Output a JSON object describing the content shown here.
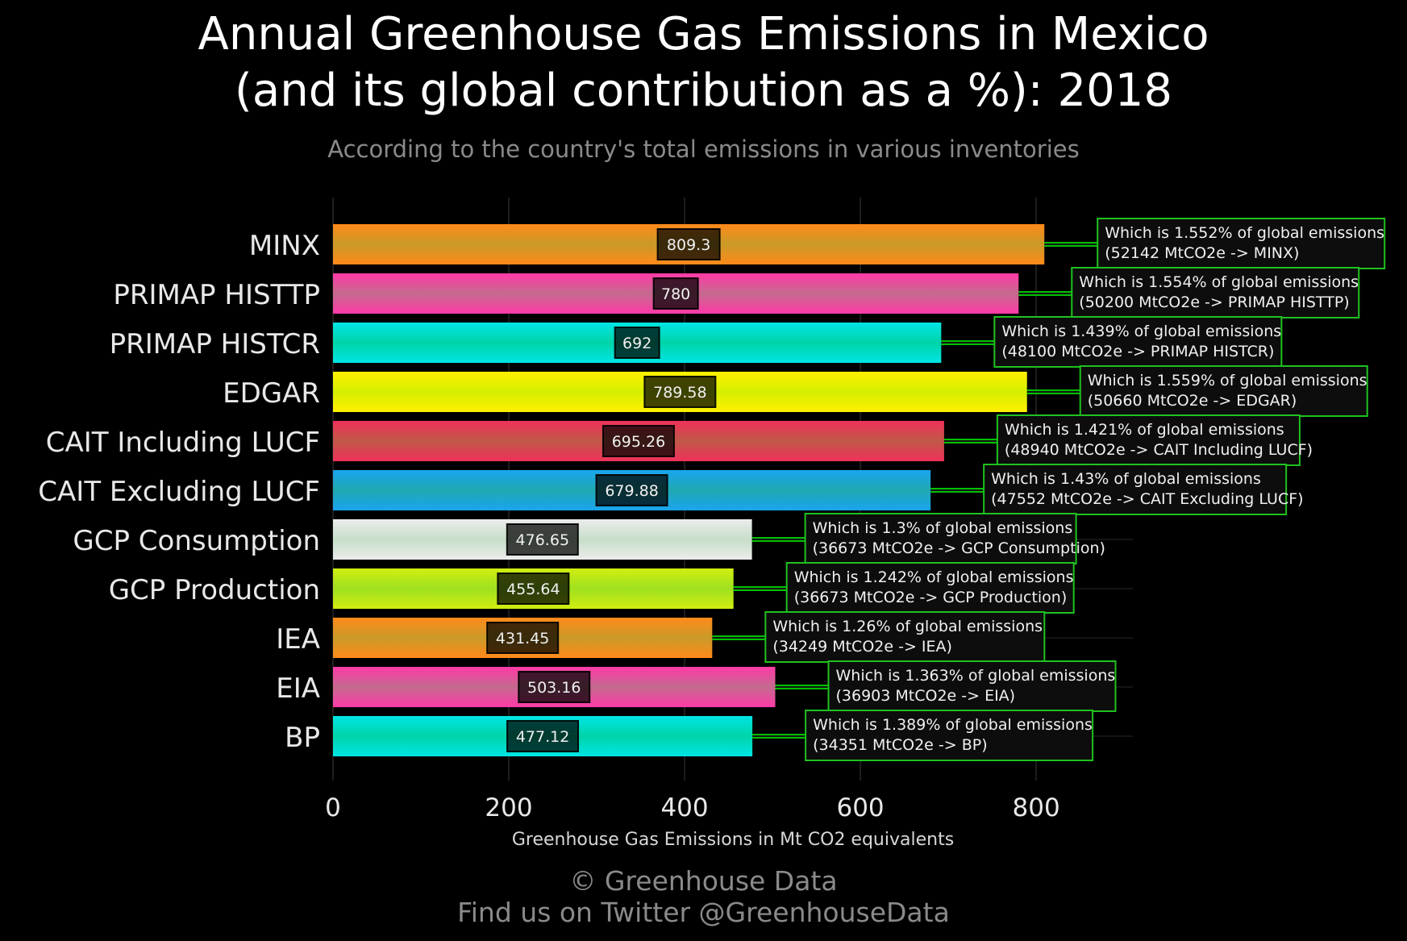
{
  "title_line1": "Annual Greenhouse Gas Emissions in Mexico",
  "title_line2": "(and its global contribution as a %): 2018",
  "subtitle": "According to the country's total emissions in various inventories",
  "footer_line1": "© Greenhouse Data",
  "footer_line2": "Find us on Twitter @GreenhouseData",
  "chart_data": {
    "type": "bar",
    "orientation": "horizontal",
    "xlabel": "Greenhouse Gas Emissions in Mt CO2 equivalents",
    "xlim": [
      0,
      910
    ],
    "xticks": [
      0,
      200,
      400,
      600,
      800
    ],
    "grid": true,
    "categories": [
      "MINX",
      "PRIMAP HISTTP",
      "PRIMAP HISTCR",
      "EDGAR",
      "CAIT Including LUCF",
      "CAIT Excluding LUCF",
      "GCP Consumption",
      "GCP Production",
      "IEA",
      "EIA",
      "BP"
    ],
    "values": [
      809.3,
      780,
      692,
      789.58,
      695.26,
      679.88,
      476.65,
      455.64,
      431.45,
      503.16,
      477.12
    ],
    "value_labels": [
      "809.3",
      "780",
      "692",
      "789.58",
      "695.26",
      "679.88",
      "476.65",
      "455.64",
      "431.45",
      "503.16",
      "477.12"
    ],
    "colors": [
      [
        "#ff8a1a",
        "#c99a28"
      ],
      [
        "#ff3aa8",
        "#c46a8e"
      ],
      [
        "#00e5e5",
        "#00d4a8"
      ],
      [
        "#fff000",
        "#d6ef00"
      ],
      [
        "#f0305a",
        "#c05848"
      ],
      [
        "#1aa5f0",
        "#20a8b0"
      ],
      [
        "#ececec",
        "#c7dec8"
      ],
      [
        "#d0ee10",
        "#a0e020"
      ],
      [
        "#ff8a1a",
        "#c99a28"
      ],
      [
        "#ff3aa8",
        "#c46a8e"
      ],
      [
        "#00e5e5",
        "#00d4a8"
      ]
    ],
    "annotations": [
      {
        "line1": "Which is 1.552% of global emissions",
        "line2": "(52142 MtCO2e -> MINX)"
      },
      {
        "line1": "Which is 1.554% of global emissions",
        "line2": "(50200 MtCO2e -> PRIMAP HISTTP)"
      },
      {
        "line1": "Which is 1.439% of global emissions",
        "line2": "(48100 MtCO2e -> PRIMAP HISTCR)"
      },
      {
        "line1": "Which is 1.559% of global emissions",
        "line2": "(50660 MtCO2e -> EDGAR)"
      },
      {
        "line1": "Which is 1.421% of global emissions",
        "line2": "(48940 MtCO2e -> CAIT Including LUCF)"
      },
      {
        "line1": "Which is 1.43% of global emissions",
        "line2": "(47552 MtCO2e -> CAIT Excluding LUCF)"
      },
      {
        "line1": "Which is 1.3% of global emissions",
        "line2": "(36673 MtCO2e -> GCP Consumption)"
      },
      {
        "line1": "Which is 1.242% of global emissions",
        "line2": "(36673 MtCO2e -> GCP Production)"
      },
      {
        "line1": "Which is 1.26% of global emissions",
        "line2": "(34249 MtCO2e -> IEA)"
      },
      {
        "line1": "Which is 1.363% of global emissions",
        "line2": "(36903 MtCO2e -> EIA)"
      },
      {
        "line1": "Which is 1.389% of global emissions",
        "line2": "(34351 MtCO2e -> BP)"
      }
    ]
  }
}
